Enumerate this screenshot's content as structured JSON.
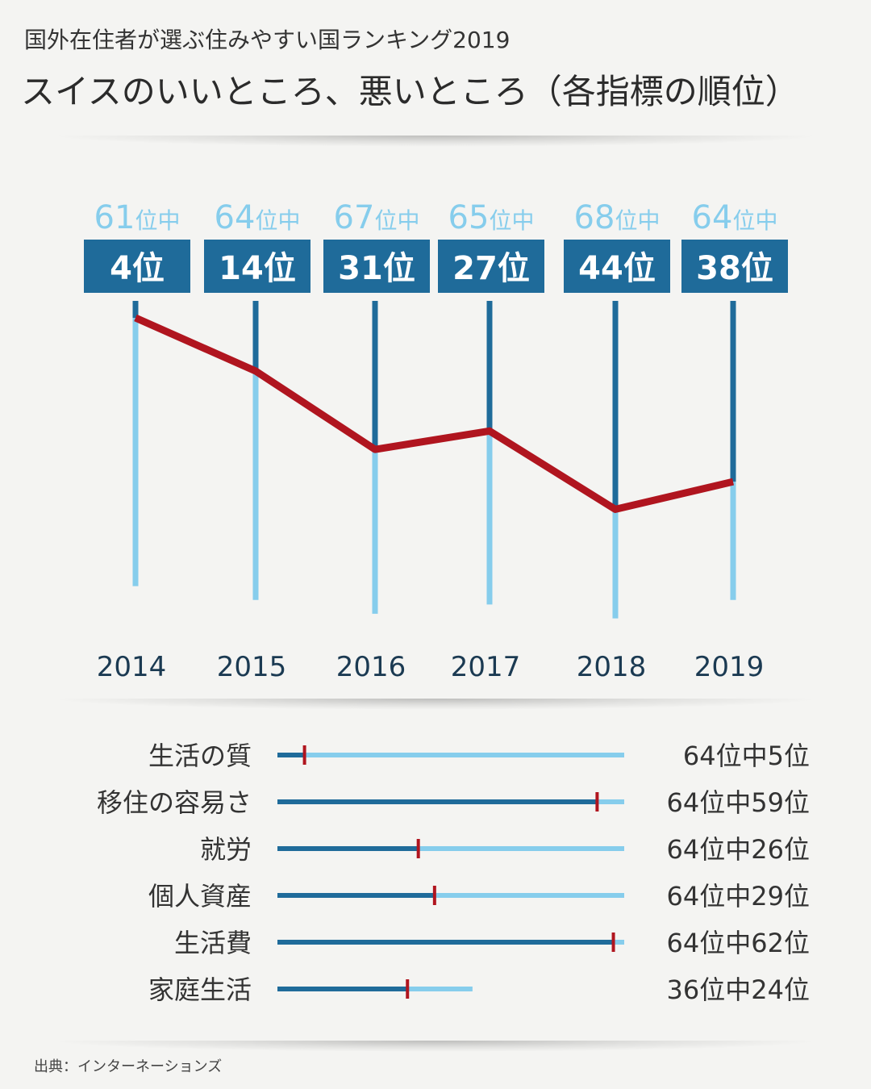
{
  "header": {
    "subtitle": "国外在住者が選ぶ住みやすい国ランキング2019",
    "title": "スイスのいいところ、悪いところ（各指標の順位）"
  },
  "chart_data": [
    {
      "type": "line",
      "x": [
        "2014",
        "2015",
        "2016",
        "2017",
        "2018",
        "2019"
      ],
      "series": [
        {
          "values": [
            4,
            14,
            31,
            27,
            44,
            38
          ]
        }
      ],
      "rank_labels": [
        "4位",
        "14位",
        "31位",
        "27位",
        "44位",
        "38位"
      ],
      "totals": [
        "61",
        "64",
        "67",
        "65",
        "68",
        "64"
      ],
      "totals_suffix": "位中",
      "colors": {
        "line": "#b0151f",
        "top": "#1f6b9a",
        "bottom": "#86cdec",
        "totals": "#86cdec",
        "year": "#1b3a52"
      }
    },
    {
      "type": "bar",
      "categories": [
        "生活の質",
        "移住の容易さ",
        "就労",
        "個人資産",
        "生活費",
        "家庭生活"
      ],
      "values": [
        5,
        59,
        26,
        29,
        62,
        24
      ],
      "totals": [
        64,
        64,
        64,
        64,
        64,
        36
      ],
      "labels": [
        "64位中5位",
        "64位中59位",
        "64位中26位",
        "64位中29位",
        "64位中62位",
        "36位中24位"
      ],
      "colors": {
        "filled": "#1f6b9a",
        "rest": "#86cdec",
        "marker": "#b0151f"
      }
    }
  ],
  "footer": {
    "source": "出典：インターネーションズ"
  }
}
